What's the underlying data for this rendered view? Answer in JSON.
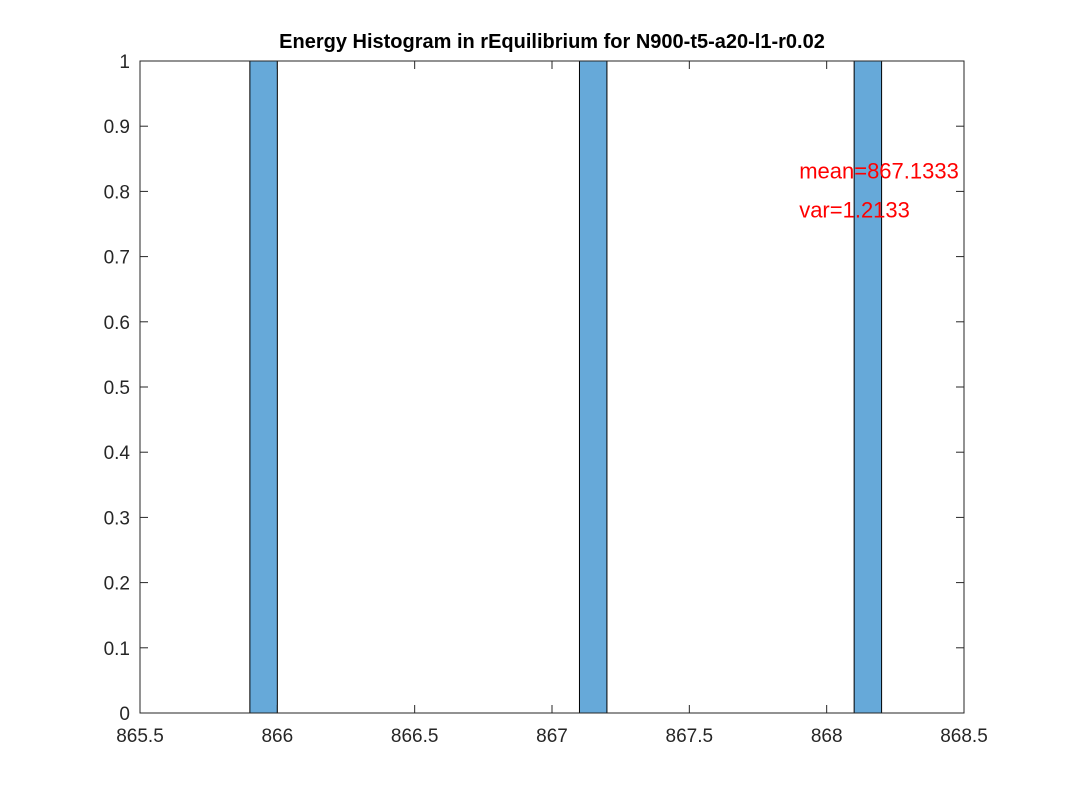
{
  "chart_data": {
    "type": "bar",
    "title": "Energy Histogram in rEquilibrium for N900-t5-a20-l1-r0.02",
    "xlabel": "",
    "ylabel": "",
    "xlim": [
      865.5,
      868.5
    ],
    "ylim": [
      0,
      1
    ],
    "xticks": [
      "865.5",
      "866",
      "866.5",
      "867",
      "867.5",
      "868",
      "868.5"
    ],
    "yticks": [
      "0",
      "0.1",
      "0.2",
      "0.3",
      "0.4",
      "0.5",
      "0.6",
      "0.7",
      "0.8",
      "0.9",
      "1"
    ],
    "bin_width": 0.1,
    "bins": [
      {
        "x_start": 865.9,
        "x_end": 866.0,
        "value": 1
      },
      {
        "x_start": 867.1,
        "x_end": 867.2,
        "value": 1
      },
      {
        "x_start": 868.1,
        "x_end": 868.2,
        "value": 1
      }
    ],
    "bar_color": "#66a9d9",
    "grid": false,
    "annotations": [
      {
        "text": "mean=867.1333",
        "x": 867.9,
        "y": 0.82,
        "color": "#ff0000"
      },
      {
        "text": "var=1.2133",
        "x": 867.9,
        "y": 0.76,
        "color": "#ff0000"
      }
    ]
  }
}
